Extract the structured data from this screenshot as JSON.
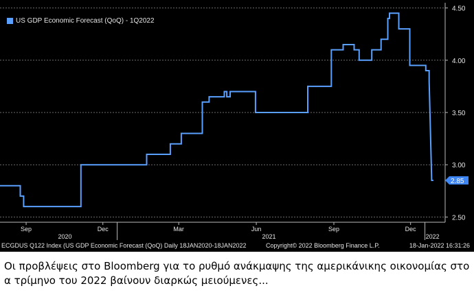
{
  "chart_data": {
    "type": "line",
    "legend": "US GDP Economic Forecast (QoQ) - 1Q2022",
    "legend_placement": "top-left",
    "series_color": "#5aa0ff",
    "last_value_label": "2.85",
    "ylim": [
      2.45,
      4.55
    ],
    "yticks": [
      "2.50",
      "3.00",
      "3.50",
      "4.00",
      "4.50"
    ],
    "xlim": [
      "2020-08-15",
      "2022-01-25"
    ],
    "month_ticks": [
      {
        "date": "2020-09-15",
        "label": "Sep"
      },
      {
        "date": "2020-12-15",
        "label": "Dec"
      },
      {
        "date": "2021-03-15",
        "label": "Mar"
      },
      {
        "date": "2021-06-15",
        "label": "Jun"
      },
      {
        "date": "2021-09-15",
        "label": "Sep"
      },
      {
        "date": "2021-12-15",
        "label": "Dec"
      }
    ],
    "year_labels": [
      {
        "date": "2020-10-31",
        "label": "2020"
      },
      {
        "date": "2021-06-30",
        "label": "2021"
      },
      {
        "date": "2022-01-10",
        "label": "2022"
      }
    ],
    "year_dividers": [
      "2021-01-01",
      "2022-01-01"
    ],
    "points": [
      {
        "x": "2020-08-15",
        "y": 2.8
      },
      {
        "x": "2020-09-08",
        "y": 2.8
      },
      {
        "x": "2020-09-08",
        "y": 2.7
      },
      {
        "x": "2020-09-12",
        "y": 2.7
      },
      {
        "x": "2020-09-12",
        "y": 2.6
      },
      {
        "x": "2020-11-19",
        "y": 2.6
      },
      {
        "x": "2020-11-19",
        "y": 3.0
      },
      {
        "x": "2021-02-05",
        "y": 3.0
      },
      {
        "x": "2021-02-05",
        "y": 3.1
      },
      {
        "x": "2021-03-05",
        "y": 3.1
      },
      {
        "x": "2021-03-05",
        "y": 3.2
      },
      {
        "x": "2021-03-18",
        "y": 3.2
      },
      {
        "x": "2021-03-18",
        "y": 3.3
      },
      {
        "x": "2021-04-12",
        "y": 3.3
      },
      {
        "x": "2021-04-12",
        "y": 3.6
      },
      {
        "x": "2021-04-20",
        "y": 3.6
      },
      {
        "x": "2021-04-20",
        "y": 3.65
      },
      {
        "x": "2021-05-08",
        "y": 3.65
      },
      {
        "x": "2021-05-08",
        "y": 3.7
      },
      {
        "x": "2021-05-11",
        "y": 3.7
      },
      {
        "x": "2021-05-11",
        "y": 3.65
      },
      {
        "x": "2021-05-15",
        "y": 3.65
      },
      {
        "x": "2021-05-15",
        "y": 3.7
      },
      {
        "x": "2021-06-14",
        "y": 3.7
      },
      {
        "x": "2021-06-14",
        "y": 3.5
      },
      {
        "x": "2021-08-15",
        "y": 3.5
      },
      {
        "x": "2021-08-15",
        "y": 3.75
      },
      {
        "x": "2021-09-12",
        "y": 3.75
      },
      {
        "x": "2021-09-12",
        "y": 4.1
      },
      {
        "x": "2021-09-26",
        "y": 4.1
      },
      {
        "x": "2021-09-26",
        "y": 4.15
      },
      {
        "x": "2021-10-09",
        "y": 4.15
      },
      {
        "x": "2021-10-09",
        "y": 4.1
      },
      {
        "x": "2021-10-15",
        "y": 4.1
      },
      {
        "x": "2021-10-15",
        "y": 4.0
      },
      {
        "x": "2021-10-30",
        "y": 4.0
      },
      {
        "x": "2021-10-30",
        "y": 4.1
      },
      {
        "x": "2021-11-10",
        "y": 4.1
      },
      {
        "x": "2021-11-10",
        "y": 4.2
      },
      {
        "x": "2021-11-18",
        "y": 4.2
      },
      {
        "x": "2021-11-18",
        "y": 4.4
      },
      {
        "x": "2021-11-20",
        "y": 4.4
      },
      {
        "x": "2021-11-20",
        "y": 4.45
      },
      {
        "x": "2021-12-01",
        "y": 4.45
      },
      {
        "x": "2021-12-01",
        "y": 4.3
      },
      {
        "x": "2021-12-14",
        "y": 4.3
      },
      {
        "x": "2021-12-14",
        "y": 3.95
      },
      {
        "x": "2022-01-02",
        "y": 3.95
      },
      {
        "x": "2022-01-02",
        "y": 3.9
      },
      {
        "x": "2022-01-06",
        "y": 3.9
      },
      {
        "x": "2022-01-06",
        "y": 3.8
      },
      {
        "x": "2022-01-09",
        "y": 2.85
      },
      {
        "x": "2022-01-11",
        "y": 2.85
      }
    ]
  },
  "footer": {
    "left": "ECGDUS Q122 Index (US GDP Economic Forecast (QoQ)  Daily 18JAN2020-18JAN2022",
    "center": "Copyright© 2022 Bloomberg Finance L.P.",
    "right": "18-Jan-2022 16:31:26"
  },
  "caption": "Οι προβλέψεις στο Bloomberg για το ρυθμό ανάκμαψης της αμερικάνικης οικονομίας στο α τρίμηνο του 2022 βαίνουν διαρκώς μειούμενες..."
}
